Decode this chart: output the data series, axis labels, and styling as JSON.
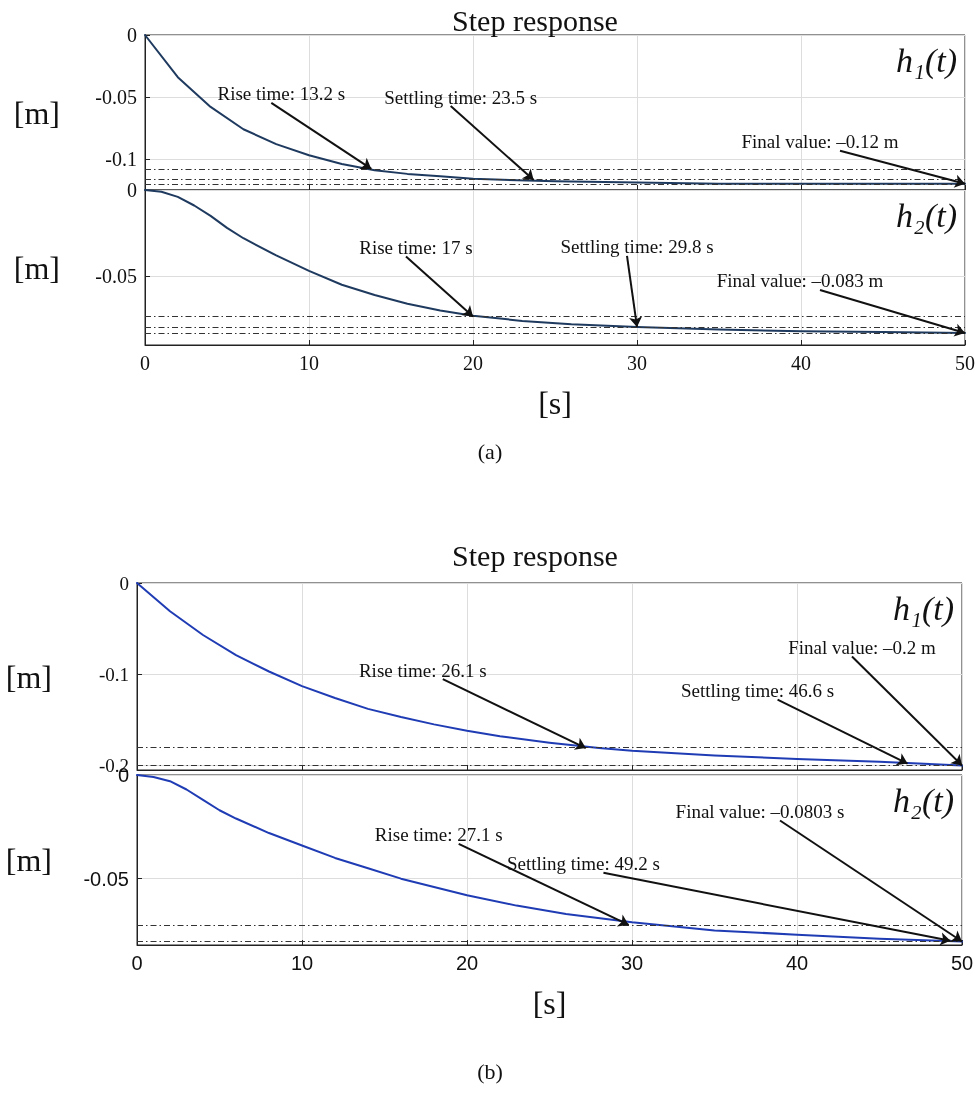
{
  "chart_data": [
    {
      "type": "line",
      "title": "Step response",
      "ylabel": "[m]",
      "xlim": [
        0,
        50
      ],
      "xticks": [
        0,
        10,
        20,
        30,
        40,
        50
      ],
      "ylim": [
        -0.125,
        0
      ],
      "yticks": [
        0,
        -0.05,
        -0.1
      ],
      "grid": true,
      "tick_labels": "y",
      "line_style": "solid",
      "series": [
        {
          "name": "h₁(t)",
          "color": "#1f3a5f",
          "x": [
            0,
            2,
            4,
            6,
            8,
            10,
            12,
            14,
            16,
            18,
            20,
            25,
            30,
            35,
            40,
            45,
            50
          ],
          "values": [
            0,
            -0.034,
            -0.058,
            -0.076,
            -0.088,
            -0.097,
            -0.104,
            -0.109,
            -0.112,
            -0.114,
            -0.116,
            -0.118,
            -0.119,
            -0.12,
            -0.12,
            -0.12,
            -0.12
          ]
        }
      ],
      "ref_lines": [
        {
          "axis": "y",
          "value": -0.108,
          "line_style": "dashdot"
        },
        {
          "axis": "y",
          "value": -0.116,
          "line_style": "dashdot"
        },
        {
          "axis": "y",
          "value": -0.12,
          "line_style": "dashdot"
        }
      ],
      "annotations": [
        {
          "text": "Rise time: 13.2 s",
          "x": 13.8,
          "y": -0.108
        },
        {
          "text": "Settling time: 23.5 s",
          "x": 23.7,
          "y": -0.117
        },
        {
          "text": "Final value: –0.12 m",
          "x": 50,
          "y": -0.12
        }
      ]
    },
    {
      "type": "line",
      "ylabel": "[m]",
      "xlabel": "[s]",
      "xlim": [
        0,
        50
      ],
      "xticks": [
        0,
        10,
        20,
        30,
        40,
        50
      ],
      "ylim": [
        -0.09,
        0
      ],
      "yticks": [
        0,
        -0.05
      ],
      "grid": true,
      "line_style": "solid",
      "series": [
        {
          "name": "h₂(t)",
          "color": "#1f3a5f",
          "x": [
            0,
            1,
            2,
            3,
            4,
            5,
            6,
            8,
            10,
            12,
            14,
            16,
            18,
            20,
            23,
            26,
            30,
            35,
            40,
            45,
            50
          ],
          "values": [
            0,
            -0.001,
            -0.004,
            -0.009,
            -0.015,
            -0.022,
            -0.028,
            -0.038,
            -0.047,
            -0.055,
            -0.061,
            -0.066,
            -0.07,
            -0.073,
            -0.076,
            -0.078,
            -0.0795,
            -0.081,
            -0.082,
            -0.0825,
            -0.083
          ]
        }
      ],
      "ref_lines": [
        {
          "axis": "y",
          "value": -0.0735,
          "line_style": "dashdot"
        },
        {
          "axis": "y",
          "value": -0.0795,
          "line_style": "dashdot"
        },
        {
          "axis": "y",
          "value": -0.083,
          "line_style": "dashdot"
        }
      ],
      "annotations": [
        {
          "text": "Rise time: 17 s",
          "x": 20,
          "y": -0.0735
        },
        {
          "text": "Settling time: 29.8 s",
          "x": 30,
          "y": -0.0795
        },
        {
          "text": "Final value: –0.083 m",
          "x": 50,
          "y": -0.083
        },
        "(a)"
      ]
    },
    {
      "type": "line",
      "title": "Step response",
      "ylabel": "[m]",
      "xlim": [
        0,
        50
      ],
      "xticks": [
        0,
        10,
        20,
        30,
        40,
        50
      ],
      "ylim": [
        -0.205,
        0
      ],
      "yticks": [
        0,
        -0.1,
        -0.2
      ],
      "grid": true,
      "tick_labels": "y",
      "line_style": "solid",
      "series": [
        {
          "name": "h₁(t)",
          "color": "#1f3cb4",
          "x": [
            0,
            2,
            4,
            6,
            8,
            10,
            12,
            14,
            16,
            18,
            20,
            22,
            25,
            28,
            30,
            35,
            40,
            45,
            50
          ],
          "values": [
            0,
            -0.031,
            -0.057,
            -0.079,
            -0.097,
            -0.113,
            -0.126,
            -0.138,
            -0.147,
            -0.155,
            -0.162,
            -0.168,
            -0.175,
            -0.181,
            -0.184,
            -0.189,
            -0.193,
            -0.196,
            -0.2
          ]
        }
      ],
      "ref_lines": [
        {
          "axis": "y",
          "value": -0.18,
          "line_style": "dashdot"
        },
        {
          "axis": "y",
          "value": -0.2,
          "line_style": "dashdot"
        }
      ],
      "annotations": [
        {
          "text": "Rise time: 26.1 s",
          "x": 27.2,
          "y": -0.181
        },
        {
          "text": "Settling time: 46.6 s",
          "x": 46.7,
          "y": -0.198
        },
        {
          "text": "Final value: –0.2 m",
          "x": 50,
          "y": -0.2
        }
      ]
    },
    {
      "type": "line",
      "ylabel": "[m]",
      "xlabel": "[s]",
      "xlim": [
        0,
        50
      ],
      "xticks": [
        0,
        10,
        20,
        30,
        40,
        50
      ],
      "ylim": [
        -0.082,
        0
      ],
      "yticks": [
        0,
        -0.05
      ],
      "grid": true,
      "line_style": "solid",
      "series": [
        {
          "name": "h₂(t)",
          "color": "#1f3cb4",
          "x": [
            0,
            1,
            2,
            3,
            4,
            5,
            6,
            8,
            10,
            12,
            14,
            16,
            18,
            20,
            23,
            26,
            30,
            35,
            40,
            45,
            50
          ],
          "values": [
            0,
            -0.001,
            -0.003,
            -0.007,
            -0.012,
            -0.017,
            -0.021,
            -0.028,
            -0.034,
            -0.04,
            -0.045,
            -0.05,
            -0.054,
            -0.058,
            -0.063,
            -0.067,
            -0.071,
            -0.075,
            -0.077,
            -0.079,
            -0.0803
          ]
        }
      ],
      "ref_lines": [
        {
          "axis": "y",
          "value": -0.0723,
          "line_style": "dashdot"
        },
        {
          "axis": "y",
          "value": -0.0803,
          "line_style": "dashdot"
        }
      ],
      "annotations": [
        {
          "text": "Rise time: 27.1 s",
          "x": 29.8,
          "y": -0.0723
        },
        {
          "text": "Settling time: 49.2 s",
          "x": 49.3,
          "y": -0.08
        },
        {
          "text": "Final value: –0.0803 s",
          "x": 50,
          "y": -0.0803
        },
        "(b)"
      ]
    }
  ]
}
